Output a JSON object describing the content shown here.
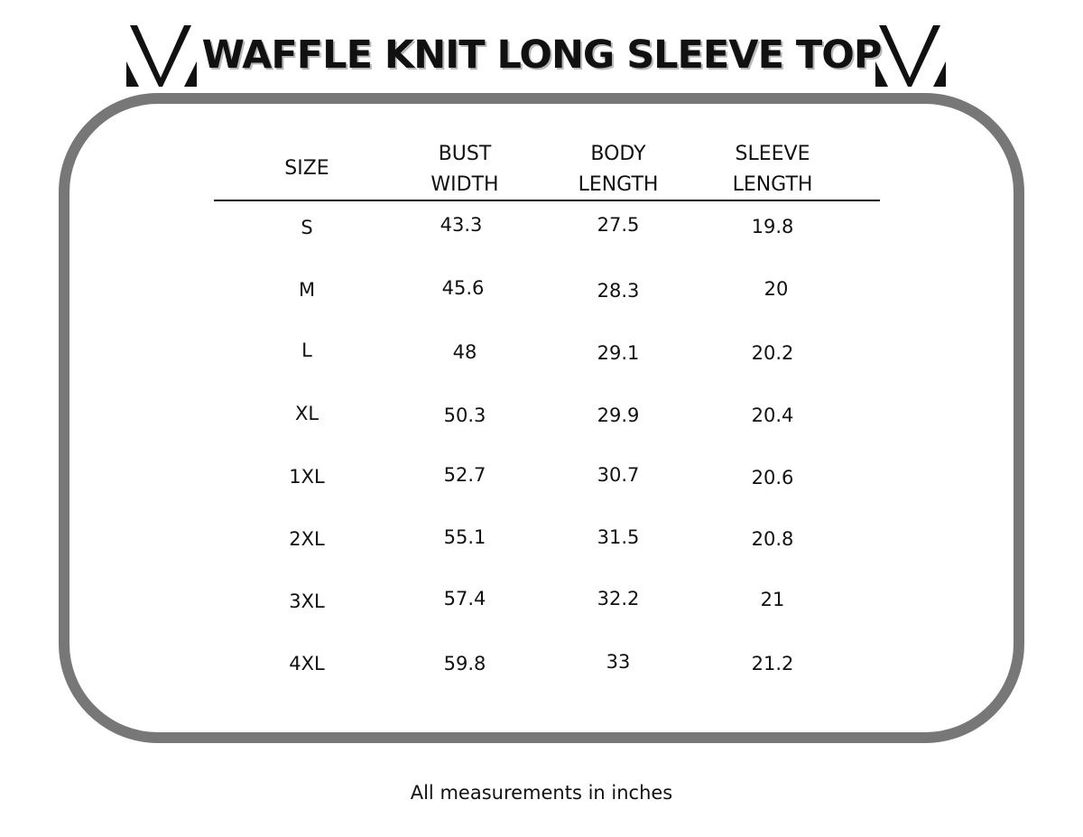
{
  "title": "WAFFLE KNIT LONG SLEEVE TOP",
  "logo_icon": "v-monogram-icon",
  "columns": [
    {
      "line1": "SIZE",
      "line2": ""
    },
    {
      "line1": "BUST",
      "line2": "WIDTH"
    },
    {
      "line1": "BODY",
      "line2": "LENGTH"
    },
    {
      "line1": "SLEEVE",
      "line2": "LENGTH"
    }
  ],
  "rows": [
    {
      "size": "S",
      "bust": "43.3",
      "body": "27.5",
      "sleeve": "19.8"
    },
    {
      "size": "M",
      "bust": "45.6",
      "body": "28.3",
      "sleeve": "20"
    },
    {
      "size": "L",
      "bust": "48",
      "body": "29.1",
      "sleeve": "20.2"
    },
    {
      "size": "XL",
      "bust": "50.3",
      "body": "29.9",
      "sleeve": "20.4"
    },
    {
      "size": "1XL",
      "bust": "52.7",
      "body": "30.7",
      "sleeve": "20.6"
    },
    {
      "size": "2XL",
      "bust": "55.1",
      "body": "31.5",
      "sleeve": "20.8"
    },
    {
      "size": "3XL",
      "bust": "57.4",
      "body": "32.2",
      "sleeve": "21"
    },
    {
      "size": "4XL",
      "bust": "59.8",
      "body": "33",
      "sleeve": "21.2"
    }
  ],
  "footnote": "All measurements in inches",
  "colors": {
    "frame": "#777777",
    "text": "#111111"
  }
}
